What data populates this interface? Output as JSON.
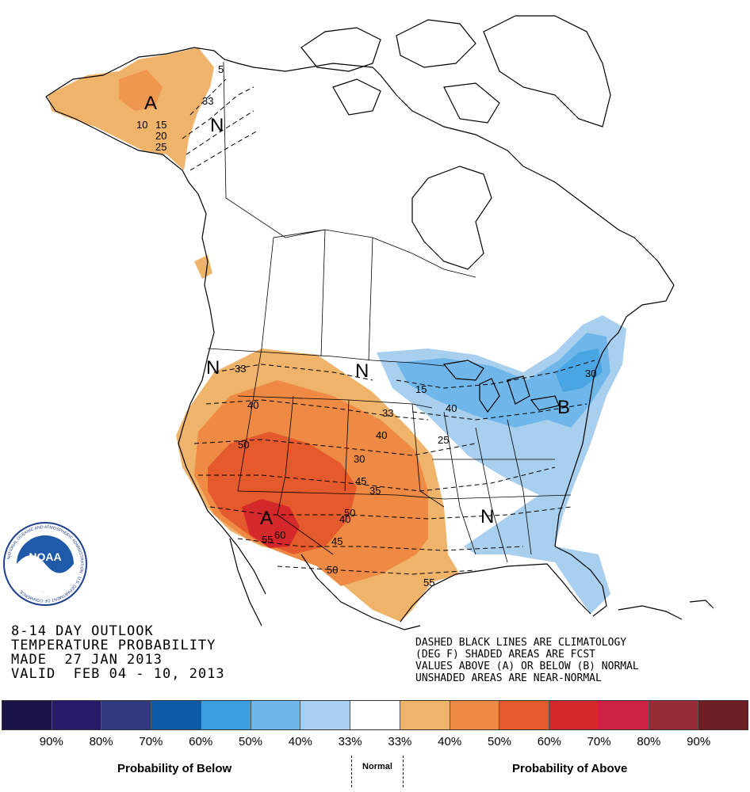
{
  "map": {
    "region": "North America",
    "logo_text": "NOAA",
    "logo_ring_text": "NATIONAL OCEANIC AND ATMOSPHERIC ADMINISTRATION · U.S. DEPARTMENT OF COMMERCE",
    "letters": {
      "alaska": "A",
      "alaska_n": "N",
      "west_n": "N",
      "north_plains_n": "N",
      "southwest_a": "A",
      "east_b": "B",
      "southeast_n": "N"
    },
    "contour_labels": {
      "ak_33": "33",
      "ak_10": "10",
      "ak_15": "15",
      "ak_20": "20",
      "ak_25": "25",
      "ak_5": "5",
      "w_33": "33",
      "w_40": "40",
      "w_50": "50",
      "w_45": "45",
      "w_60": "60",
      "w_55": "55",
      "w_50b": "50",
      "w_45b": "45",
      "c_33": "33",
      "c_40": "40",
      "c_30": "30",
      "c_35": "35",
      "c_40b": "40",
      "c_50": "50",
      "c_55": "55",
      "e_15": "15",
      "e_40": "40",
      "e_25": "25",
      "e_30": "30"
    }
  },
  "title": {
    "line1": "8-14 DAY OUTLOOK",
    "line2": "TEMPERATURE PROBABILITY",
    "line3": "MADE  27 JAN 2013",
    "line4": "VALID  FEB 04 - 10, 2013"
  },
  "note": {
    "line1": "DASHED BLACK LINES ARE CLIMATOLOGY",
    "line2": "(DEG F) SHADED AREAS ARE FCST",
    "line3": "VALUES ABOVE (A) OR BELOW (B) NORMAL",
    "line4": "UNSHADED AREAS ARE NEAR-NORMAL"
  },
  "legend": {
    "colors": [
      "#1a1347",
      "#281a6a",
      "#2f3a7a",
      "#0d5aa6",
      "#3a9ee0",
      "#6fb7ea",
      "#a9cfee",
      "#ffffff",
      "#f0b36a",
      "#ee8a44",
      "#e45a2c",
      "#d4282a",
      "#cc2244",
      "#962a35",
      "#6e1f24"
    ],
    "below_labels": [
      "90%",
      "80%",
      "70%",
      "60%",
      "50%",
      "40%",
      "33%"
    ],
    "above_labels": [
      "33%",
      "40%",
      "50%",
      "60%",
      "70%",
      "80%",
      "90%"
    ],
    "below_caption": "Probability of Below",
    "normal_caption": "Normal",
    "above_caption": "Probability of Above"
  }
}
